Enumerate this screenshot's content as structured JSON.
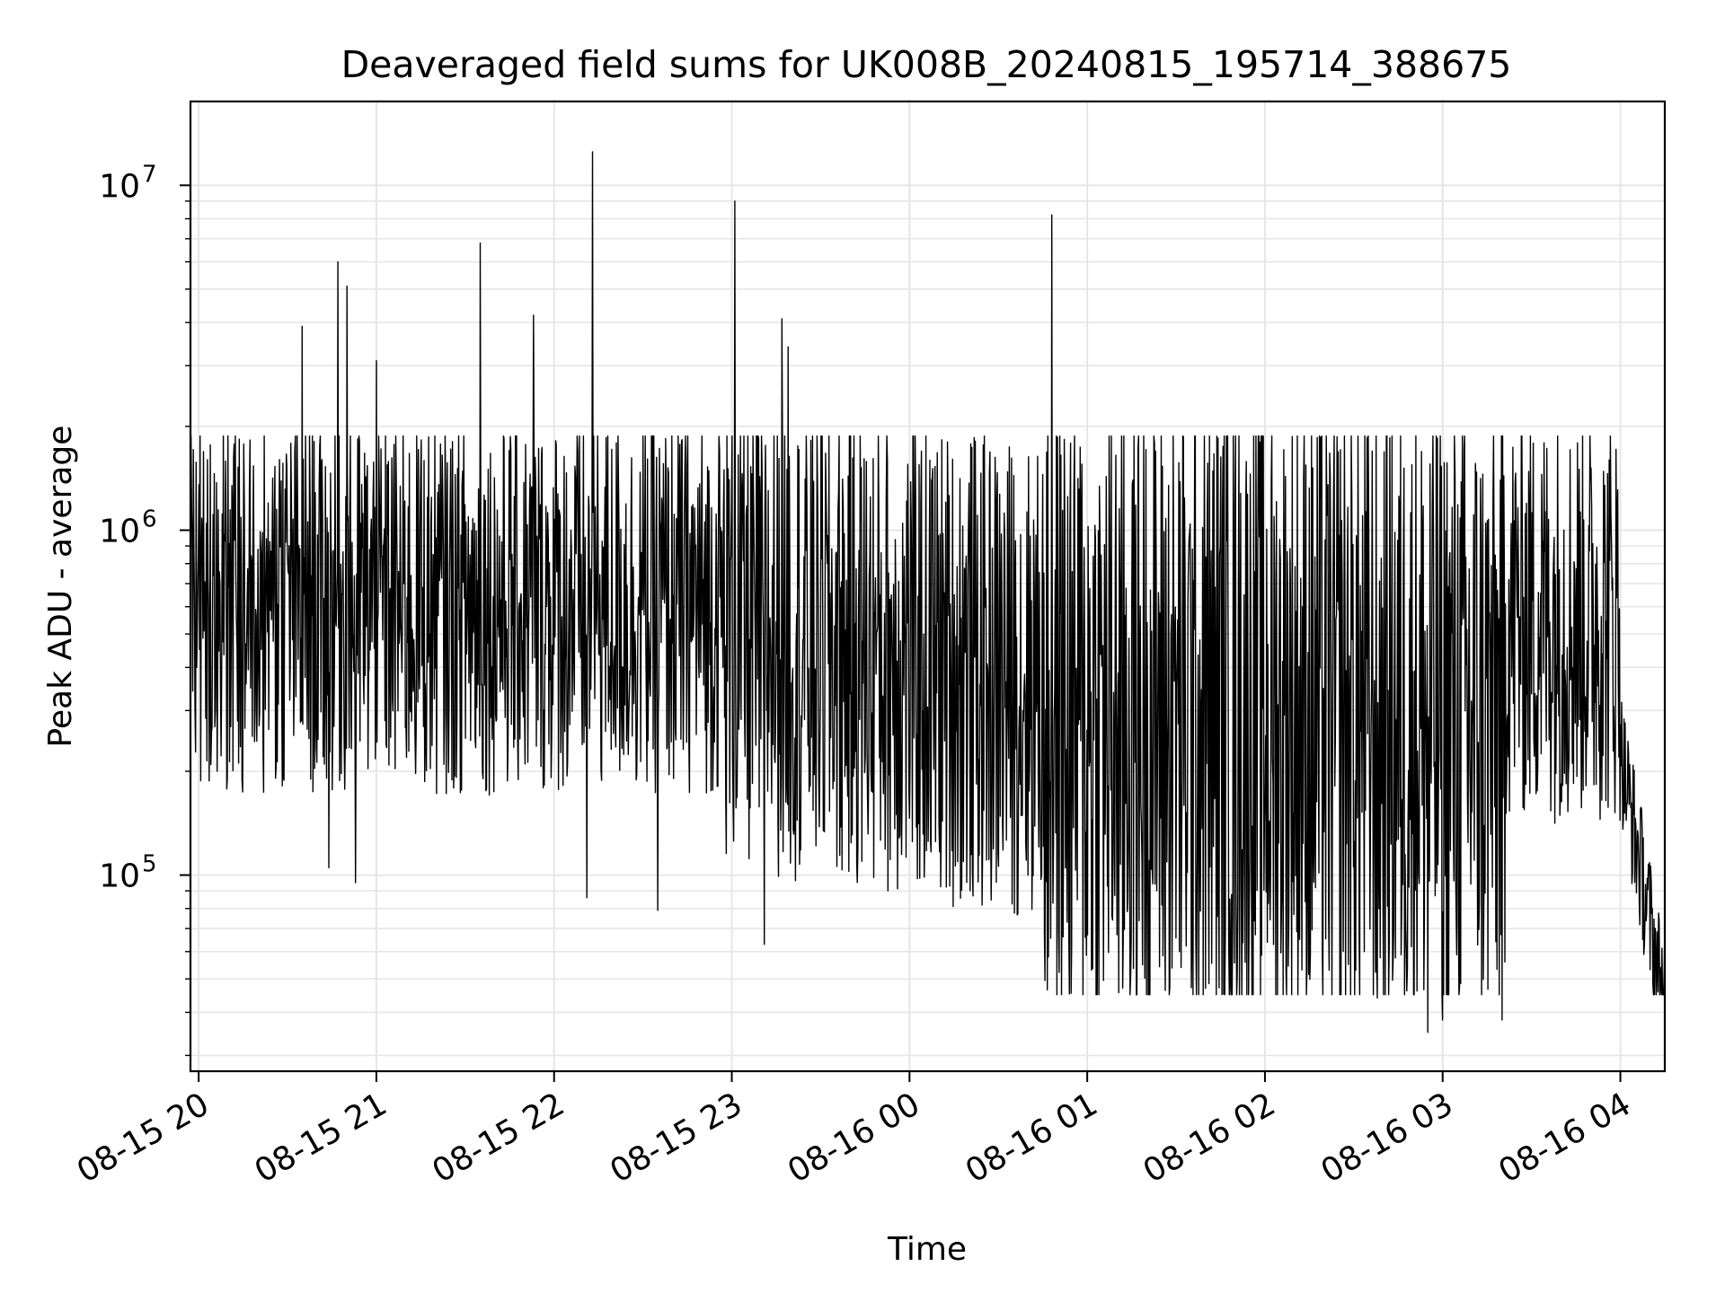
{
  "chart_data": {
    "type": "line",
    "title": "Deaveraged field sums for UK008B_20240815_195714_388675",
    "xlabel": "Time",
    "ylabel": "Peak ADU - average",
    "y_scale": "log",
    "ylim": [
      27000,
      17500000
    ],
    "xlim": [
      "2024-08-15 19:57:14",
      "2024-08-16 04:15:00"
    ],
    "x_ticks": [
      {
        "time": "2024-08-15 20:00",
        "label": "08-15 20"
      },
      {
        "time": "2024-08-15 21:00",
        "label": "08-15 21"
      },
      {
        "time": "2024-08-15 22:00",
        "label": "08-15 22"
      },
      {
        "time": "2024-08-15 23:00",
        "label": "08-15 23"
      },
      {
        "time": "2024-08-16 00:00",
        "label": "08-16 00"
      },
      {
        "time": "2024-08-16 01:00",
        "label": "08-16 01"
      },
      {
        "time": "2024-08-16 02:00",
        "label": "08-16 02"
      },
      {
        "time": "2024-08-16 03:00",
        "label": "08-16 03"
      },
      {
        "time": "2024-08-16 04:00",
        "label": "08-16 04"
      }
    ],
    "y_ticks": [
      {
        "value": 100000,
        "base": "10",
        "exp": "5"
      },
      {
        "value": 1000000,
        "base": "10",
        "exp": "6"
      },
      {
        "value": 10000000,
        "base": "10",
        "exp": "7"
      }
    ],
    "grid": true,
    "line_color": "#000000",
    "grid_color": "#e6e6e6",
    "series": [
      {
        "peaks": [
          {
            "time": "2024-08-15 20:35",
            "value": 3900000
          },
          {
            "time": "2024-08-15 20:47",
            "value": 6000000
          },
          {
            "time": "2024-08-15 20:50",
            "value": 5100000
          },
          {
            "time": "2024-08-15 21:00",
            "value": 3100000
          },
          {
            "time": "2024-08-15 21:35",
            "value": 6800000
          },
          {
            "time": "2024-08-15 21:53",
            "value": 4200000
          },
          {
            "time": "2024-08-15 22:13",
            "value": 12500000
          },
          {
            "time": "2024-08-15 23:01",
            "value": 9000000
          },
          {
            "time": "2024-08-15 23:17",
            "value": 4100000
          },
          {
            "time": "2024-08-15 23:19",
            "value": 3400000
          },
          {
            "time": "2024-08-16 00:48",
            "value": 8200000
          }
        ],
        "troughs": [
          {
            "time": "2024-08-15 20:44",
            "value": 105000
          },
          {
            "time": "2024-08-15 20:53",
            "value": 95000
          },
          {
            "time": "2024-08-15 22:11",
            "value": 86000
          },
          {
            "time": "2024-08-15 22:35",
            "value": 79000
          },
          {
            "time": "2024-08-15 23:11",
            "value": 63000
          },
          {
            "time": "2024-08-16 01:12",
            "value": 47000
          },
          {
            "time": "2024-08-16 01:49",
            "value": 45000
          },
          {
            "time": "2024-08-16 02:38",
            "value": 44000
          },
          {
            "time": "2024-08-16 02:55",
            "value": 35000
          },
          {
            "time": "2024-08-16 03:00",
            "value": 38000
          },
          {
            "time": "2024-08-16 03:20",
            "value": 38000
          },
          {
            "time": "2024-08-16 04:15",
            "value": 72000
          }
        ],
        "typical_range": [
          50000,
          1500000
        ]
      }
    ]
  }
}
